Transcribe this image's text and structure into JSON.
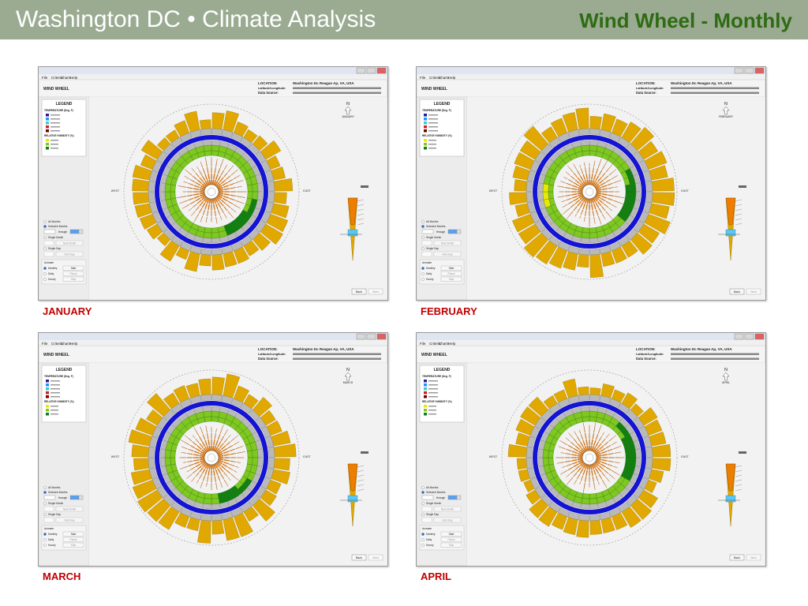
{
  "header": {
    "title": "Washington DC • Climate Analysis",
    "subtitle": "Wind Wheel - Monthly"
  },
  "window": {
    "menu_items": [
      "File",
      "Criteria",
      "Charts",
      "Help"
    ],
    "chart_name": "WIND WHEEL",
    "location_label": "LOCATION:",
    "location_value": "Washington Dc Reagan Ap, VA, USA",
    "latlon_label": "Latitude/Longitude:",
    "source_label": "Data Source:",
    "legend_title": "LEGEND",
    "temperature_heading": "TEMPERATURE (Deg. F)",
    "humidity_heading": "RELATIVE HUMIDITY (%)",
    "temperature_colors": [
      "#1f1f9f",
      "#1e90ff",
      "#40c8c8",
      "#d02020",
      "#700000"
    ],
    "humidity_colors": [
      "#e8e800",
      "#7ec820",
      "#108010"
    ],
    "compass": {
      "north": "N",
      "west": "WEST",
      "east": "EAST"
    },
    "controls": {
      "all_months": "All Months",
      "selected_months": "Selected Months",
      "through": "through",
      "single_month": "Single Month",
      "next_month": "Next Month",
      "single_day": "Single Day",
      "next_day": "Next Day",
      "animate": "Animate",
      "monthly": "Monthly",
      "daily": "Daily",
      "hourly": "Hourly",
      "start": "Start",
      "pause": "Pause",
      "stop": "Stop"
    },
    "footer_buttons": [
      "Back",
      "Next"
    ],
    "ring_colors": {
      "outer_bar": "#e0a800",
      "gray": "#b9b9b9",
      "blue": "#1414d2",
      "light_green": "#7ec820",
      "dark_green": "#108010",
      "yellow": "#e8e800",
      "orange": "#ee7d00",
      "cyan": "#5cc8f0"
    }
  },
  "panels": [
    {
      "caption": "JANUARY",
      "month_label": "JANUARY"
    },
    {
      "caption": "FEBRUARY",
      "month_label": "FEBRUARY"
    },
    {
      "caption": "MARCH",
      "month_label": "MARCH"
    },
    {
      "caption": "APRIL",
      "month_label": "APRIL"
    }
  ]
}
